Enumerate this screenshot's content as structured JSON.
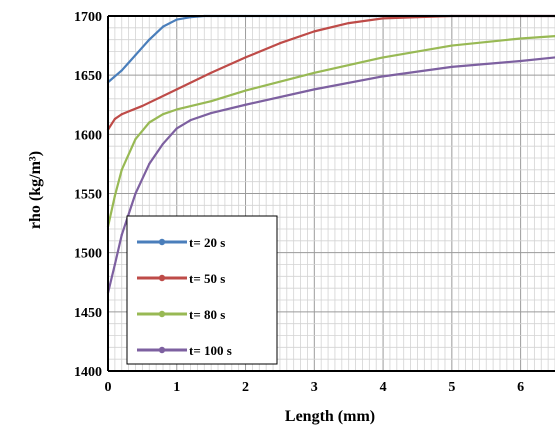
{
  "chart_data": {
    "type": "line",
    "xlabel": "Length (mm)",
    "ylabel": "rho (kg/m³)",
    "xlim": [
      0,
      6.5
    ],
    "ylim": [
      1400,
      1700
    ],
    "x_ticks": [
      "0",
      "1",
      "2",
      "3",
      "4",
      "5",
      "6"
    ],
    "y_ticks": [
      "1400",
      "1450",
      "1500",
      "1550",
      "1600",
      "1650",
      "1700"
    ],
    "grid": true,
    "legend_position": "bottom-left",
    "series": [
      {
        "name": "t= 20 s",
        "color": "#4a7ebb",
        "marker": "diamond",
        "x": [
          0,
          0.2,
          0.4,
          0.6,
          0.8,
          1.0,
          1.2,
          1.4,
          2,
          3,
          4,
          5,
          6,
          6.5
        ],
        "y": [
          1644,
          1654,
          1667,
          1680,
          1691,
          1697,
          1699,
          1700,
          1700,
          1700,
          1700,
          1700,
          1700,
          1700
        ]
      },
      {
        "name": "t= 50 s",
        "color": "#be4b48",
        "marker": "square",
        "x": [
          0,
          0.1,
          0.2,
          0.5,
          1.0,
          1.5,
          2.0,
          2.5,
          3.0,
          3.5,
          4.0,
          4.5,
          5,
          6,
          6.5
        ],
        "y": [
          1604,
          1613,
          1617,
          1624,
          1638,
          1652,
          1665,
          1677,
          1687,
          1694,
          1698,
          1699,
          1700,
          1700,
          1700
        ]
      },
      {
        "name": "t= 80 s",
        "color": "#98b954",
        "marker": "triangle",
        "x": [
          0,
          0.1,
          0.2,
          0.4,
          0.6,
          0.8,
          1.0,
          1.5,
          2,
          3,
          4,
          5,
          6,
          6.5
        ],
        "y": [
          1522,
          1548,
          1570,
          1596,
          1610,
          1617,
          1621,
          1628,
          1637,
          1652,
          1665,
          1675,
          1681,
          1683
        ]
      },
      {
        "name": "t= 100 s",
        "color": "#7d60a0",
        "marker": "diamond",
        "x": [
          0,
          0.1,
          0.2,
          0.4,
          0.6,
          0.8,
          1.0,
          1.2,
          1.5,
          2,
          3,
          4,
          5,
          6,
          6.5
        ],
        "y": [
          1466,
          1490,
          1515,
          1550,
          1575,
          1592,
          1605,
          1612,
          1618,
          1625,
          1638,
          1649,
          1657,
          1662,
          1665
        ]
      }
    ]
  }
}
